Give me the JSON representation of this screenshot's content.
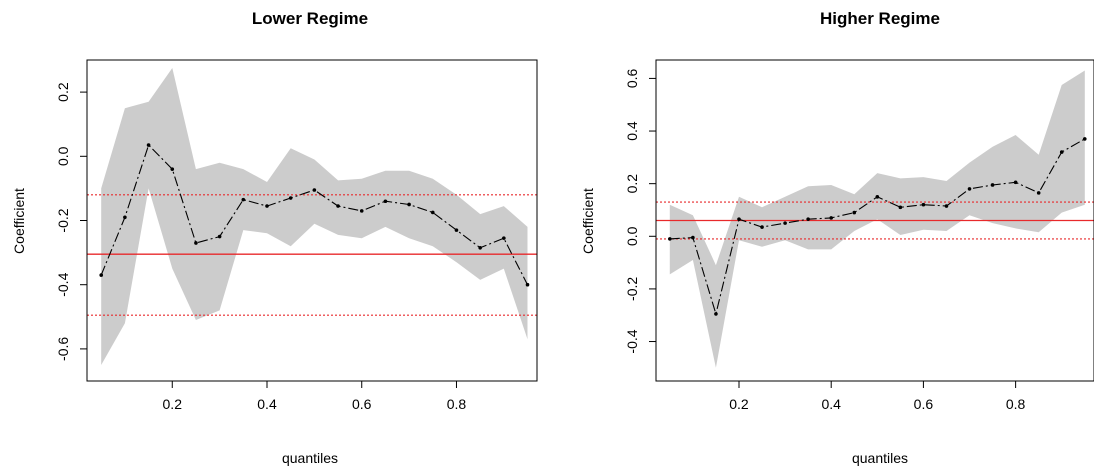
{
  "chart_data": [
    {
      "type": "line",
      "title": "Lower Regime",
      "xlabel": "quantiles",
      "ylabel": "Coefficient",
      "xlim": [
        0.02,
        0.97
      ],
      "ylim": [
        -0.7,
        0.3
      ],
      "xticks": [
        0.2,
        0.4,
        0.6,
        0.8
      ],
      "xtick_labels": [
        "0.2",
        "0.4",
        "0.6",
        "0.8"
      ],
      "yticks": [
        -0.6,
        -0.4,
        -0.2,
        0.0,
        0.2
      ],
      "ytick_labels": [
        "-0.6",
        "-0.4",
        "-0.2",
        "0.0",
        "0.2"
      ],
      "x": [
        0.05,
        0.1,
        0.15,
        0.2,
        0.25,
        0.3,
        0.35,
        0.4,
        0.45,
        0.5,
        0.55,
        0.6,
        0.65,
        0.7,
        0.75,
        0.8,
        0.85,
        0.9,
        0.95
      ],
      "series": [
        {
          "values": [
            -0.37,
            -0.19,
            0.035,
            -0.04,
            -0.27,
            -0.25,
            -0.135,
            -0.155,
            -0.13,
            -0.105,
            -0.155,
            -0.17,
            -0.14,
            -0.15,
            -0.175,
            -0.23,
            -0.285,
            -0.255,
            -0.4
          ]
        }
      ],
      "band_upper": [
        -0.1,
        0.15,
        0.17,
        0.275,
        -0.04,
        -0.02,
        -0.04,
        -0.08,
        0.025,
        -0.01,
        -0.075,
        -0.07,
        -0.045,
        -0.045,
        -0.07,
        -0.12,
        -0.18,
        -0.155,
        -0.22
      ],
      "band_lower": [
        -0.65,
        -0.52,
        -0.1,
        -0.35,
        -0.51,
        -0.48,
        -0.23,
        -0.24,
        -0.28,
        -0.21,
        -0.245,
        -0.255,
        -0.22,
        -0.255,
        -0.28,
        -0.33,
        -0.385,
        -0.35,
        -0.57
      ],
      "ref_line": -0.305,
      "ref_band": [
        -0.495,
        -0.12
      ],
      "colors": {
        "band": "#cccccc",
        "line": "#000000",
        "ref": "#e8292b"
      }
    },
    {
      "type": "line",
      "title": "Higher Regime",
      "xlabel": "quantiles",
      "ylabel": "Coefficient",
      "xlim": [
        0.02,
        0.97
      ],
      "ylim": [
        -0.55,
        0.67
      ],
      "xticks": [
        0.2,
        0.4,
        0.6,
        0.8
      ],
      "xtick_labels": [
        "0.2",
        "0.4",
        "0.6",
        "0.8"
      ],
      "yticks": [
        -0.4,
        -0.2,
        0.0,
        0.2,
        0.4,
        0.6
      ],
      "ytick_labels": [
        "-0.4",
        "-0.2",
        "0.0",
        "0.2",
        "0.4",
        "0.6"
      ],
      "x": [
        0.05,
        0.1,
        0.15,
        0.2,
        0.25,
        0.3,
        0.35,
        0.4,
        0.45,
        0.5,
        0.55,
        0.6,
        0.65,
        0.7,
        0.75,
        0.8,
        0.85,
        0.9,
        0.95
      ],
      "series": [
        {
          "values": [
            -0.01,
            -0.005,
            -0.295,
            0.065,
            0.035,
            0.05,
            0.065,
            0.07,
            0.09,
            0.15,
            0.11,
            0.12,
            0.115,
            0.18,
            0.195,
            0.205,
            0.165,
            0.32,
            0.37
          ]
        }
      ],
      "band_upper": [
        0.12,
        0.08,
        -0.11,
        0.15,
        0.11,
        0.15,
        0.19,
        0.195,
        0.16,
        0.24,
        0.22,
        0.225,
        0.21,
        0.28,
        0.34,
        0.385,
        0.31,
        0.575,
        0.63
      ],
      "band_lower": [
        -0.145,
        -0.09,
        -0.5,
        -0.015,
        -0.04,
        -0.015,
        -0.05,
        -0.05,
        0.02,
        0.065,
        0.005,
        0.025,
        0.02,
        0.08,
        0.05,
        0.03,
        0.015,
        0.09,
        0.12
      ],
      "ref_line": 0.06,
      "ref_band": [
        -0.01,
        0.13
      ],
      "colors": {
        "band": "#cccccc",
        "line": "#000000",
        "ref": "#e8292b"
      }
    }
  ]
}
